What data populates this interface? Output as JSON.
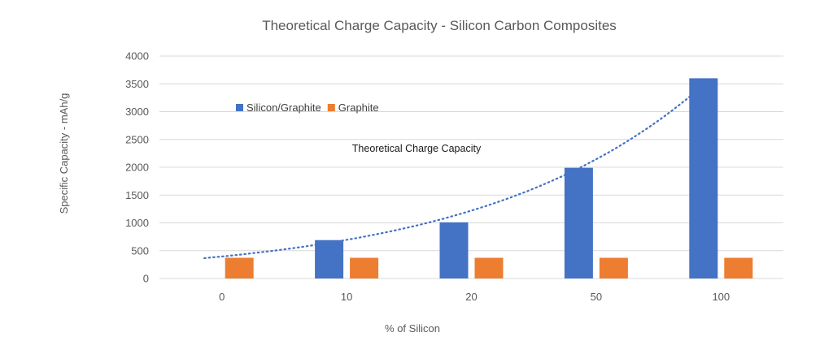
{
  "chart_data": {
    "type": "bar",
    "title": "Theoretical Charge Capacity - Silicon Carbon Composites",
    "xlabel": "% of Silicon",
    "ylabel": "Specific Capacity - mAh/g",
    "categories": [
      "0",
      "10",
      "20",
      "50",
      "100"
    ],
    "series": [
      {
        "name": "Silicon/Graphite",
        "color": "#4472c4",
        "values": [
          0,
          690,
          1010,
          1990,
          3600
        ]
      },
      {
        "name": "Graphite",
        "color": "#ed7d31",
        "values": [
          372,
          372,
          372,
          372,
          372
        ]
      }
    ],
    "trendline": {
      "series": "Silicon/Graphite",
      "style": "dotted",
      "color": "#4472c4",
      "type": "exponential"
    },
    "ylim": [
      0,
      4000
    ],
    "yticks": [
      0,
      500,
      1000,
      1500,
      2000,
      2500,
      3000,
      3500,
      4000
    ],
    "grid": true,
    "legend_position": "upper-left-inside",
    "annotation": "Theoretical Charge Capacity"
  }
}
